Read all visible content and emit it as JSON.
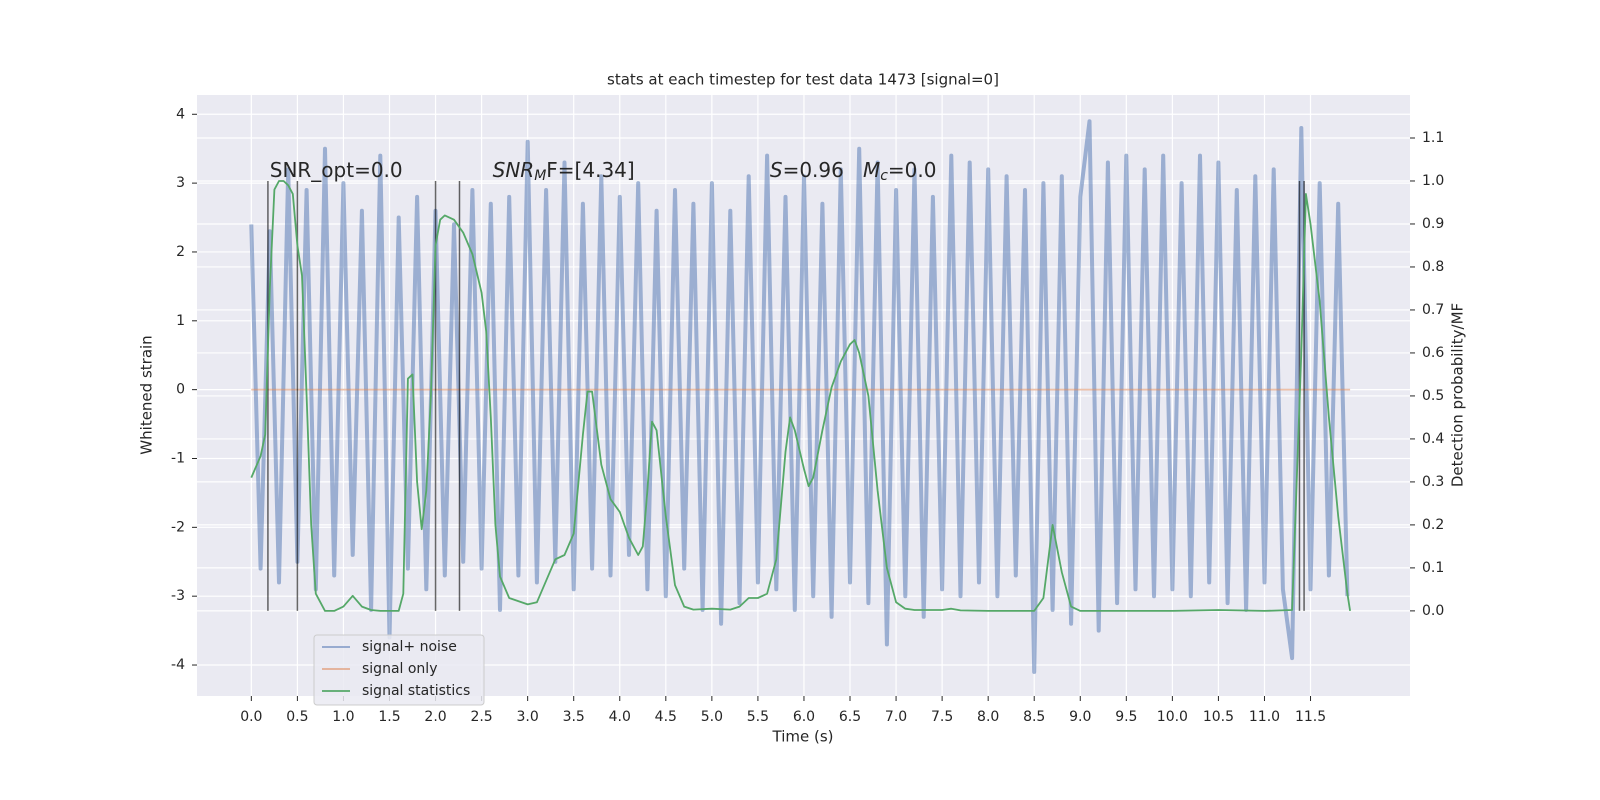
{
  "chart_data": {
    "type": "line",
    "title": "stats at each timestep for test data 1473 [signal=0]",
    "xlabel": "Time (s)",
    "ylabel": "Whitened strain",
    "y2label": "Detection probability/MF",
    "xlim": [
      -0.59,
      12.58
    ],
    "ylim": [
      -4.45,
      4.28
    ],
    "y2lim": [
      -0.198,
      1.2
    ],
    "xticks": [
      {
        "value": 0,
        "label": "0.0"
      },
      {
        "value": 0.5,
        "label": "0.5"
      },
      {
        "value": 1,
        "label": "1.0"
      },
      {
        "value": 1.5,
        "label": "1.5"
      },
      {
        "value": 2,
        "label": "2.0"
      },
      {
        "value": 2.5,
        "label": "2.5"
      },
      {
        "value": 3,
        "label": "3.0"
      },
      {
        "value": 3.5,
        "label": "3.5"
      },
      {
        "value": 4,
        "label": "4.0"
      },
      {
        "value": 4.5,
        "label": "4.5"
      },
      {
        "value": 5,
        "label": "5.0"
      },
      {
        "value": 5.5,
        "label": "5.5"
      },
      {
        "value": 6,
        "label": "6.0"
      },
      {
        "value": 6.5,
        "label": "6.5"
      },
      {
        "value": 7,
        "label": "7.0"
      },
      {
        "value": 7.5,
        "label": "7.5"
      },
      {
        "value": 8,
        "label": "8.0"
      },
      {
        "value": 8.5,
        "label": "8.5"
      },
      {
        "value": 9,
        "label": "9.0"
      },
      {
        "value": 9.5,
        "label": "9.5"
      },
      {
        "value": 10,
        "label": "10.0"
      },
      {
        "value": 10.5,
        "label": "10.5"
      },
      {
        "value": 11,
        "label": "11.0"
      },
      {
        "value": 11.5,
        "label": "11.5"
      }
    ],
    "yticks": [
      -4,
      -3,
      -2,
      -1,
      0,
      1,
      2,
      3,
      4
    ],
    "y2ticks": [
      {
        "value": 0,
        "label": "0.0"
      },
      0.1,
      0.2,
      0.3,
      0.4,
      0.5,
      0.6,
      0.7,
      0.8,
      0.9,
      {
        "value": 1,
        "label": "1.0"
      },
      1.1
    ],
    "grid": true,
    "legend": "lower left",
    "series": [
      {
        "name": "signal+ noise",
        "color": "#4c72b0",
        "x": [
          0,
          0.1,
          0.2,
          0.3,
          0.4,
          0.5,
          0.6,
          0.7,
          0.8,
          0.9,
          1,
          1.1,
          1.2,
          1.3,
          1.4,
          1.5,
          1.6,
          1.7,
          1.8,
          1.9,
          2,
          2.1,
          2.2,
          2.3,
          2.4,
          2.5,
          2.6,
          2.7,
          2.8,
          2.9,
          3,
          3.1,
          3.2,
          3.3,
          3.4,
          3.5,
          3.6,
          3.7,
          3.8,
          3.9,
          4,
          4.1,
          4.2,
          4.3,
          4.4,
          4.5,
          4.6,
          4.7,
          4.8,
          4.9,
          5,
          5.1,
          5.2,
          5.3,
          5.4,
          5.5,
          5.6,
          5.7,
          5.8,
          5.9,
          6,
          6.1,
          6.2,
          6.3,
          6.4,
          6.5,
          6.6,
          6.7,
          6.8,
          6.9,
          7,
          7.1,
          7.2,
          7.3,
          7.4,
          7.5,
          7.6,
          7.7,
          7.8,
          7.9,
          8,
          8.1,
          8.2,
          8.3,
          8.4,
          8.5,
          8.6,
          8.7,
          8.8,
          8.9,
          9,
          9.1,
          9.2,
          9.3,
          9.4,
          9.5,
          9.6,
          9.7,
          9.8,
          9.9,
          10,
          10.1,
          10.2,
          10.3,
          10.4,
          10.5,
          10.6,
          10.7,
          10.8,
          10.9,
          11,
          11.1,
          11.2,
          11.3,
          11.4,
          11.5,
          11.6,
          11.7,
          11.8,
          11.9
        ],
        "values": [
          2.4,
          -2.6,
          2.3,
          -2.8,
          3.2,
          -2.5,
          2.9,
          -2.9,
          3.5,
          -2.7,
          3.0,
          -2.4,
          2.6,
          -3.2,
          3.4,
          -3.6,
          2.5,
          -2.6,
          2.8,
          -2.9,
          2.6,
          -2.7,
          2.4,
          -2.5,
          2.9,
          -2.6,
          2.7,
          -3.2,
          2.8,
          -2.7,
          3.6,
          -2.8,
          2.9,
          -2.5,
          3.3,
          -2.9,
          2.7,
          -2.6,
          3.1,
          -2.7,
          2.8,
          -2.4,
          3.0,
          -2.9,
          2.6,
          -3.0,
          2.9,
          -2.6,
          2.7,
          -3.2,
          3.0,
          -3.4,
          2.6,
          -3.1,
          3.1,
          -2.8,
          3.4,
          -2.9,
          2.8,
          -3.2,
          3.1,
          -3.0,
          2.7,
          -3.3,
          3.2,
          -2.8,
          3.5,
          -3.1,
          3.3,
          -3.7,
          2.9,
          -3.0,
          3.2,
          -3.3,
          2.8,
          -2.9,
          3.4,
          -3.0,
          3.3,
          -2.8,
          3.2,
          -3.0,
          3.1,
          -2.7,
          2.9,
          -4.1,
          3.0,
          -3.2,
          3.1,
          -3.4,
          2.8,
          3.9,
          -3.5,
          3.3,
          -3.1,
          3.4,
          -2.9,
          3.2,
          -3.0,
          3.4,
          -2.9,
          3.0,
          -3.0,
          3.4,
          -2.8,
          3.3,
          -3.1,
          2.9,
          -3.2,
          3.1,
          -2.8,
          3.2,
          -2.9,
          -3.9,
          3.8,
          -2.9,
          3.0,
          -2.7,
          2.7,
          -3.0
        ]
      },
      {
        "name": "signal only",
        "color": "#dd8452",
        "x": [
          0,
          11.93
        ],
        "values": [
          0,
          0
        ]
      },
      {
        "name": "signal statistics",
        "color": "#55a868",
        "axis": "y2",
        "x": [
          0,
          0.1,
          0.15,
          0.2,
          0.25,
          0.3,
          0.35,
          0.4,
          0.45,
          0.5,
          0.55,
          0.6,
          0.65,
          0.7,
          0.8,
          0.9,
          1.0,
          1.1,
          1.2,
          1.3,
          1.4,
          1.5,
          1.6,
          1.65,
          1.7,
          1.75,
          1.8,
          1.85,
          1.9,
          1.95,
          2.0,
          2.05,
          2.1,
          2.2,
          2.3,
          2.4,
          2.5,
          2.55,
          2.6,
          2.65,
          2.7,
          2.8,
          3.0,
          3.1,
          3.2,
          3.3,
          3.4,
          3.5,
          3.6,
          3.65,
          3.7,
          3.8,
          3.9,
          4.0,
          4.1,
          4.2,
          4.25,
          4.3,
          4.35,
          4.4,
          4.5,
          4.6,
          4.7,
          4.8,
          5.0,
          5.2,
          5.3,
          5.4,
          5.5,
          5.6,
          5.7,
          5.8,
          5.85,
          5.9,
          6.0,
          6.05,
          6.1,
          6.2,
          6.3,
          6.4,
          6.5,
          6.55,
          6.6,
          6.7,
          6.8,
          6.9,
          7.0,
          7.1,
          7.2,
          7.5,
          7.6,
          7.7,
          8.0,
          8.5,
          8.6,
          8.7,
          8.8,
          8.9,
          9.0,
          9.5,
          10.0,
          10.5,
          11.0,
          11.3,
          11.4,
          11.45,
          11.5,
          11.6,
          11.7,
          11.8,
          11.9,
          11.93
        ],
        "values": [
          0.31,
          0.36,
          0.41,
          0.75,
          0.98,
          1.0,
          1.0,
          0.99,
          0.97,
          0.85,
          0.78,
          0.5,
          0.2,
          0.04,
          0.0,
          0.0,
          0.01,
          0.035,
          0.01,
          0.002,
          0.0,
          0.0,
          0.0,
          0.04,
          0.54,
          0.55,
          0.3,
          0.19,
          0.28,
          0.5,
          0.85,
          0.91,
          0.92,
          0.91,
          0.88,
          0.83,
          0.74,
          0.65,
          0.45,
          0.2,
          0.08,
          0.03,
          0.015,
          0.02,
          0.07,
          0.12,
          0.13,
          0.18,
          0.41,
          0.51,
          0.51,
          0.34,
          0.26,
          0.23,
          0.17,
          0.13,
          0.15,
          0.28,
          0.44,
          0.42,
          0.22,
          0.06,
          0.01,
          0.003,
          0.005,
          0.003,
          0.01,
          0.03,
          0.03,
          0.04,
          0.12,
          0.37,
          0.45,
          0.42,
          0.33,
          0.29,
          0.31,
          0.42,
          0.52,
          0.58,
          0.62,
          0.63,
          0.6,
          0.5,
          0.28,
          0.1,
          0.02,
          0.005,
          0.002,
          0.002,
          0.005,
          0.001,
          0.0,
          0.0,
          0.03,
          0.2,
          0.09,
          0.01,
          0.0,
          0.0,
          0.0,
          0.002,
          0.0,
          0.002,
          0.6,
          0.97,
          0.9,
          0.72,
          0.45,
          0.22,
          0.04,
          0.0
        ]
      }
    ],
    "vlines": {
      "x": [
        0.18,
        0.5,
        2.0,
        2.26,
        11.38,
        11.43
      ],
      "ymin": 0,
      "ymax": 1,
      "axis": "y2",
      "color": "#000000"
    },
    "annotations": [
      {
        "x": 0.2,
        "y": 3.0,
        "parts": [
          {
            "text": "SNR_opt=0.0"
          }
        ]
      },
      {
        "x": 2.62,
        "y": 3.0,
        "parts": [
          {
            "text": "SNR",
            "italic": true
          },
          {
            "text": "M",
            "italic": true,
            "sub": true
          },
          {
            "text": "F=[4.34]"
          }
        ]
      },
      {
        "x": 5.63,
        "y": 3.0,
        "parts": [
          {
            "text": "S",
            "italic": true
          },
          {
            "text": "=0.96   "
          },
          {
            "text": "M",
            "italic": true
          },
          {
            "text": "c",
            "italic": true,
            "sub": true
          },
          {
            "text": "=0.0"
          }
        ]
      }
    ]
  }
}
